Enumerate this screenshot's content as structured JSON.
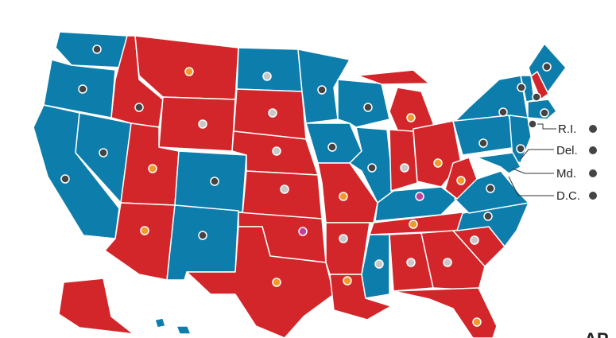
{
  "labels": [
    "R.I.",
    "Del.",
    "Md.",
    "D.C."
  ],
  "credit": "AP"
}
